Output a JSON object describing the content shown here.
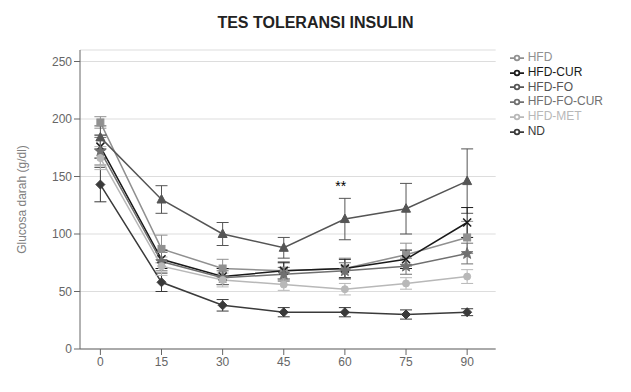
{
  "chart_data": {
    "type": "line",
    "title": "TES TOLERANSI INSULIN",
    "ylabel": "Glucosa darah (g/dl)",
    "x": [
      0,
      15,
      30,
      45,
      60,
      75,
      90
    ],
    "xlim": [
      -5,
      97
    ],
    "xticks": [
      0,
      15,
      30,
      45,
      60,
      75,
      90
    ],
    "ylim": [
      0,
      260
    ],
    "yticks": [
      0,
      50,
      100,
      150,
      200,
      250
    ],
    "grid": "y",
    "legend": "right",
    "series": [
      {
        "name": "ND",
        "color": "#3a3a3a",
        "marker": "diamond",
        "values": [
          143,
          58,
          38,
          32,
          32,
          30,
          32
        ],
        "errors": [
          15,
          8,
          5,
          4,
          4,
          4,
          3
        ]
      },
      {
        "name": "HFD",
        "color": "#909090",
        "marker": "square",
        "values": [
          197,
          87,
          70,
          68,
          70,
          82,
          97
        ],
        "errors": [
          5,
          12,
          8,
          8,
          9,
          10,
          14
        ]
      },
      {
        "name": "HFD-FO",
        "color": "#555555",
        "marker": "triangle",
        "values": [
          184,
          130,
          100,
          88,
          113,
          122,
          146
        ],
        "errors": [
          10,
          12,
          10,
          9,
          18,
          22,
          28
        ]
      },
      {
        "name": "HFD-CUR",
        "color": "#1a1a1a",
        "marker": "cross",
        "values": [
          176,
          78,
          63,
          68,
          70,
          78,
          110
        ],
        "errors": [
          10,
          8,
          7,
          7,
          8,
          8,
          13
        ]
      },
      {
        "name": "HFD-FO-CUR",
        "color": "#707070",
        "marker": "star",
        "values": [
          172,
          76,
          62,
          65,
          68,
          72,
          83
        ],
        "errors": [
          12,
          8,
          6,
          6,
          7,
          7,
          9
        ]
      },
      {
        "name": "HFD-MET",
        "color": "#b8b8b8",
        "marker": "circle",
        "values": [
          166,
          72,
          60,
          56,
          52,
          57,
          63
        ],
        "errors": [
          10,
          8,
          6,
          5,
          5,
          5,
          6
        ]
      }
    ],
    "annotations": [
      {
        "text": "**",
        "x": 59,
        "y": 133
      }
    ]
  }
}
